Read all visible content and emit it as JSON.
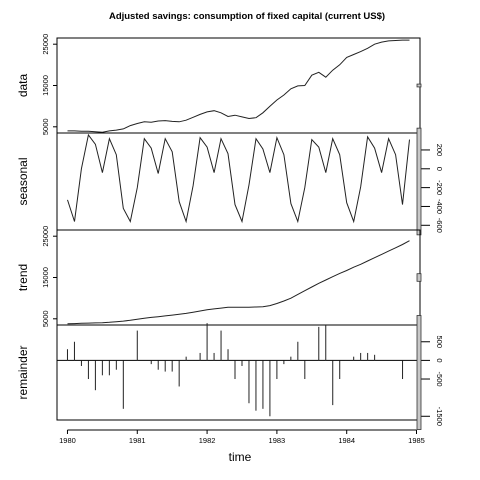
{
  "chart_data": {
    "type": "line",
    "title": "Adjusted savings: consumption of fixed capital (current US$)",
    "xlabel": "time",
    "xlim": [
      1979.85,
      1985.05
    ],
    "x_ticks": [
      "1980",
      "1981",
      "1982",
      "1983",
      "1984",
      "1985"
    ],
    "time": [
      1980.0,
      1980.1,
      1980.2,
      1980.3,
      1980.4,
      1980.5,
      1980.6,
      1980.7,
      1980.8,
      1980.9,
      1981.0,
      1981.1,
      1981.2,
      1981.3,
      1981.4,
      1981.5,
      1981.6,
      1981.7,
      1981.8,
      1981.9,
      1982.0,
      1982.1,
      1982.2,
      1982.3,
      1982.4,
      1982.5,
      1982.6,
      1982.7,
      1982.8,
      1982.9,
      1983.0,
      1983.1,
      1983.2,
      1983.3,
      1983.4,
      1983.5,
      1983.6,
      1983.7,
      1983.8,
      1983.9,
      1984.0,
      1984.1,
      1984.2,
      1984.3,
      1984.4,
      1984.5,
      1984.6,
      1984.7,
      1984.8,
      1984.9
    ],
    "panels": [
      {
        "name": "data",
        "ylabel": "data",
        "ylim": [
          3500,
          26500
        ],
        "y_ticks": [
          "5000",
          "15000",
          "25000"
        ],
        "y_tick_values": [
          5000,
          15000,
          25000
        ],
        "tick_side": "left",
        "style": "line",
        "values": [
          4000,
          4000,
          3900,
          3900,
          3800,
          3700,
          4000,
          4200,
          4500,
          5300,
          5800,
          6200,
          6100,
          6400,
          6500,
          6300,
          6200,
          6600,
          7300,
          8000,
          8600,
          8900,
          8400,
          7500,
          7800,
          7400,
          7000,
          7200,
          8400,
          10000,
          11500,
          12700,
          14200,
          14900,
          15000,
          17500,
          18200,
          17000,
          18700,
          20000,
          21800,
          22500,
          23200,
          24000,
          25000,
          25500,
          25800,
          25900,
          26000,
          26000
        ],
        "range_bar": [
          -0.015,
          0.015
        ]
      },
      {
        "name": "seasonal",
        "ylabel": "seasonal",
        "ylim": [
          -650,
          380
        ],
        "y_ticks": [
          "200",
          "0",
          "-200",
          "-400",
          "-600"
        ],
        "y_tick_values": [
          200,
          0,
          -200,
          -400,
          -600
        ],
        "tick_side": "right",
        "style": "line",
        "values": [
          -330,
          -560,
          0,
          360,
          260,
          -40,
          320,
          150,
          -420,
          -560,
          -200,
          320,
          220,
          -50,
          320,
          180,
          -350,
          -560,
          -180,
          330,
          230,
          -40,
          320,
          160,
          -380,
          -560,
          -170,
          320,
          210,
          -40,
          330,
          150,
          -370,
          -560,
          -200,
          310,
          230,
          -40,
          320,
          150,
          -360,
          -560,
          -190,
          340,
          220,
          -40,
          320,
          150,
          -380,
          310
        ],
        "range_bar": [
          -0.55,
          0.55
        ]
      },
      {
        "name": "trend",
        "ylabel": "trend",
        "ylim": [
          3500,
          26500
        ],
        "y_ticks": [
          "5000",
          "15000",
          "25000"
        ],
        "y_tick_values": [
          5000,
          15000,
          25000
        ],
        "tick_side": "left",
        "style": "line",
        "values": [
          3800,
          3850,
          3900,
          3950,
          4000,
          4050,
          4150,
          4300,
          4450,
          4650,
          4900,
          5150,
          5350,
          5500,
          5700,
          5900,
          6100,
          6300,
          6600,
          6900,
          7200,
          7400,
          7600,
          7800,
          7800,
          7800,
          7800,
          7850,
          7900,
          8200,
          8700,
          9300,
          10000,
          10900,
          11800,
          12700,
          13600,
          14400,
          15200,
          16000,
          16700,
          17500,
          18200,
          19000,
          19800,
          20600,
          21400,
          22200,
          23000,
          23900
        ],
        "range_bar": [
          -0.04,
          0.04
        ]
      },
      {
        "name": "remainder",
        "ylabel": "remainder",
        "ylim": [
          -1600,
          950
        ],
        "y_ticks": [
          "500",
          "0",
          "-500",
          "-1500"
        ],
        "y_tick_values": [
          500,
          0,
          -500,
          -1500
        ],
        "tick_side": "right",
        "style": "bars",
        "values": [
          300,
          500,
          -150,
          -500,
          -800,
          -400,
          -400,
          -250,
          -1300,
          0,
          800,
          0,
          -100,
          -250,
          -300,
          -300,
          -700,
          100,
          0,
          200,
          1000,
          200,
          800,
          300,
          -500,
          -150,
          -1150,
          -1350,
          -1300,
          -1500,
          -500,
          -100,
          100,
          500,
          -500,
          0,
          900,
          950,
          -1200,
          -500,
          0,
          100,
          200,
          200,
          150,
          0,
          0,
          0,
          -500,
          0
        ],
        "range_bar": [
          -0.6,
          0.6
        ]
      }
    ]
  }
}
